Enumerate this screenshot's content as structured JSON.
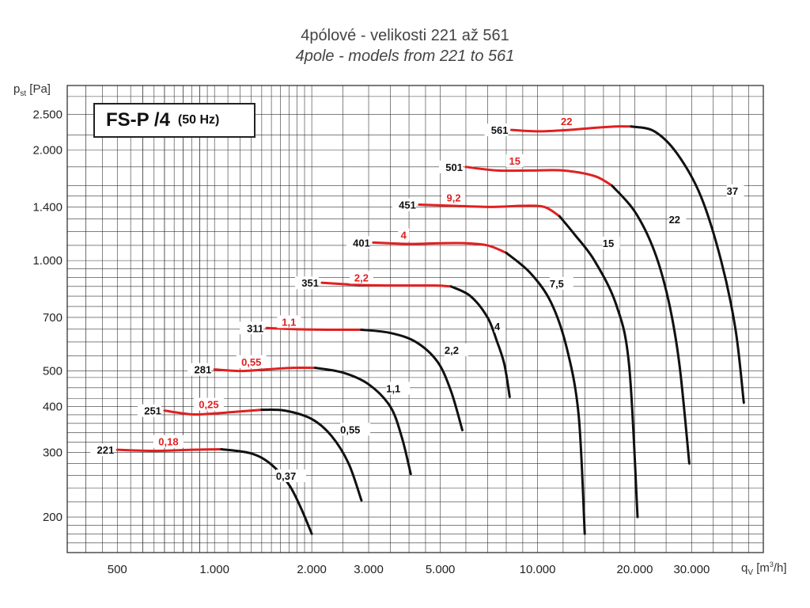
{
  "title": "4pólové - velikosti 221 až 561",
  "subtitle": "4pole - models from 221 to 561",
  "badge": {
    "model": "FS-P /4",
    "frequency": "(50 Hz)"
  },
  "chart_data": {
    "type": "line",
    "xscale": "log",
    "yscale": "log",
    "xlim": [
      350,
      50000
    ],
    "ylim": [
      160,
      3000
    ],
    "ylabel": "p",
    "ylabel_sub": "st",
    "ylabel_unit": "[Pa]",
    "xlabel": "q",
    "xlabel_sub": "V",
    "xlabel_unit": "[m",
    "xlabel_sup": "3",
    "xlabel_unit_end": "/h]",
    "x_ticks": [
      500,
      1000,
      2000,
      3000,
      5000,
      10000,
      20000,
      30000
    ],
    "x_tick_labels": [
      "500",
      "1.000",
      "2.000",
      "3.000",
      "5.000",
      "10.000",
      "20.000",
      "30.000"
    ],
    "y_ticks": [
      200,
      300,
      400,
      500,
      700,
      1000,
      1400,
      2000,
      2500
    ],
    "y_tick_labels": [
      "200",
      "300",
      "400",
      "500",
      "700",
      "1.000",
      "1.400",
      "2.000",
      "2.500"
    ],
    "grid": true,
    "colors": {
      "red": "#e02020",
      "black": "#111111"
    },
    "series": [
      {
        "name": "221",
        "red_label": "0,18",
        "black_label": "0,37",
        "red_points": [
          [
            500,
            305
          ],
          [
            650,
            303
          ],
          [
            850,
            305
          ],
          [
            1050,
            306
          ]
        ],
        "black_points": [
          [
            1050,
            306
          ],
          [
            1300,
            298
          ],
          [
            1500,
            278
          ],
          [
            1700,
            245
          ],
          [
            1850,
            212
          ],
          [
            2000,
            180
          ]
        ],
        "red_label_at": [
          720,
          315
        ],
        "black_label_at": [
          1550,
          254
        ]
      },
      {
        "name": "251",
        "red_label": "0,25",
        "black_label": "0,55",
        "red_points": [
          [
            700,
            390
          ],
          [
            850,
            381
          ],
          [
            1000,
            383
          ],
          [
            1200,
            388
          ],
          [
            1400,
            392
          ]
        ],
        "black_points": [
          [
            1400,
            392
          ],
          [
            1650,
            390
          ],
          [
            2000,
            370
          ],
          [
            2300,
            333
          ],
          [
            2600,
            280
          ],
          [
            2850,
            222
          ]
        ],
        "red_label_at": [
          960,
          398
        ],
        "black_label_at": [
          2450,
          340
        ]
      },
      {
        "name": "281",
        "red_label": "0,55",
        "black_label": "1,1",
        "red_points": [
          [
            1000,
            505
          ],
          [
            1200,
            500
          ],
          [
            1450,
            505
          ],
          [
            1750,
            510
          ],
          [
            2050,
            510
          ]
        ],
        "black_points": [
          [
            2050,
            510
          ],
          [
            2500,
            495
          ],
          [
            3000,
            460
          ],
          [
            3500,
            400
          ],
          [
            3800,
            330
          ],
          [
            4050,
            262
          ]
        ],
        "red_label_at": [
          1300,
          520
        ],
        "black_label_at": [
          3400,
          440
        ]
      },
      {
        "name": "311",
        "red_label": "1,1",
        "black_label": "2,2",
        "red_points": [
          [
            1450,
            655
          ],
          [
            1800,
            650
          ],
          [
            2300,
            648
          ],
          [
            2850,
            648
          ]
        ],
        "black_points": [
          [
            2850,
            648
          ],
          [
            3500,
            635
          ],
          [
            4200,
            600
          ],
          [
            4900,
            530
          ],
          [
            5400,
            440
          ],
          [
            5850,
            345
          ]
        ],
        "red_label_at": [
          1700,
          668
        ],
        "black_label_at": [
          5150,
          560
        ]
      },
      {
        "name": "351",
        "red_label": "2,2",
        "black_label": "4",
        "red_points": [
          [
            2150,
            870
          ],
          [
            2800,
            858
          ],
          [
            3700,
            855
          ],
          [
            4800,
            855
          ],
          [
            5400,
            850
          ]
        ],
        "black_points": [
          [
            5400,
            850
          ],
          [
            6200,
            800
          ],
          [
            7000,
            700
          ],
          [
            7500,
            600
          ],
          [
            7900,
            520
          ],
          [
            8200,
            425
          ]
        ],
        "red_label_at": [
          2850,
          882
        ],
        "black_label_at": [
          7350,
          650
        ]
      },
      {
        "name": "401",
        "red_label": "4",
        "black_label": "7,5",
        "red_points": [
          [
            3100,
            1120
          ],
          [
            4000,
            1110
          ],
          [
            5000,
            1115
          ],
          [
            6000,
            1115
          ],
          [
            7000,
            1100
          ],
          [
            8000,
            1050
          ]
        ],
        "black_points": [
          [
            8000,
            1050
          ],
          [
            9500,
            925
          ],
          [
            11000,
            770
          ],
          [
            12300,
            580
          ],
          [
            13400,
            380
          ],
          [
            14000,
            180
          ]
        ],
        "red_label_at": [
          3850,
          1152
        ],
        "black_label_at": [
          10900,
          850
        ]
      },
      {
        "name": "451",
        "red_label": "9,2",
        "black_label": "15",
        "red_points": [
          [
            4300,
            1420
          ],
          [
            5500,
            1410
          ],
          [
            7200,
            1400
          ],
          [
            9000,
            1410
          ],
          [
            10500,
            1400
          ],
          [
            11700,
            1320
          ]
        ],
        "black_points": [
          [
            11700,
            1320
          ],
          [
            13000,
            1180
          ],
          [
            15000,
            1000
          ],
          [
            17500,
            760
          ],
          [
            19200,
            520
          ],
          [
            20400,
            200
          ]
        ],
        "red_label_at": [
          5500,
          1455
        ],
        "black_label_at": [
          15900,
          1095
        ]
      },
      {
        "name": "501",
        "red_label": "15",
        "black_label": "22",
        "red_points": [
          [
            6000,
            1800
          ],
          [
            7500,
            1760
          ],
          [
            9500,
            1760
          ],
          [
            12000,
            1760
          ],
          [
            15000,
            1700
          ],
          [
            17000,
            1600
          ]
        ],
        "black_points": [
          [
            17000,
            1600
          ],
          [
            20000,
            1360
          ],
          [
            23000,
            1060
          ],
          [
            25500,
            770
          ],
          [
            27500,
            520
          ],
          [
            29500,
            280
          ]
        ],
        "red_label_at": [
          8500,
          1835
        ],
        "black_label_at": [
          25500,
          1270
        ]
      },
      {
        "name": "561",
        "red_label": "22",
        "black_label": "37",
        "red_points": [
          [
            8300,
            2270
          ],
          [
            10000,
            2250
          ],
          [
            12500,
            2270
          ],
          [
            15000,
            2300
          ],
          [
            17500,
            2320
          ],
          [
            19500,
            2320
          ]
        ],
        "black_points": [
          [
            19500,
            2320
          ],
          [
            23000,
            2250
          ],
          [
            27000,
            1960
          ],
          [
            32000,
            1500
          ],
          [
            37000,
            1000
          ],
          [
            41000,
            650
          ],
          [
            43500,
            410
          ]
        ],
        "red_label_at": [
          12300,
          2350
        ],
        "black_label_at": [
          38500,
          1520
        ]
      }
    ]
  }
}
